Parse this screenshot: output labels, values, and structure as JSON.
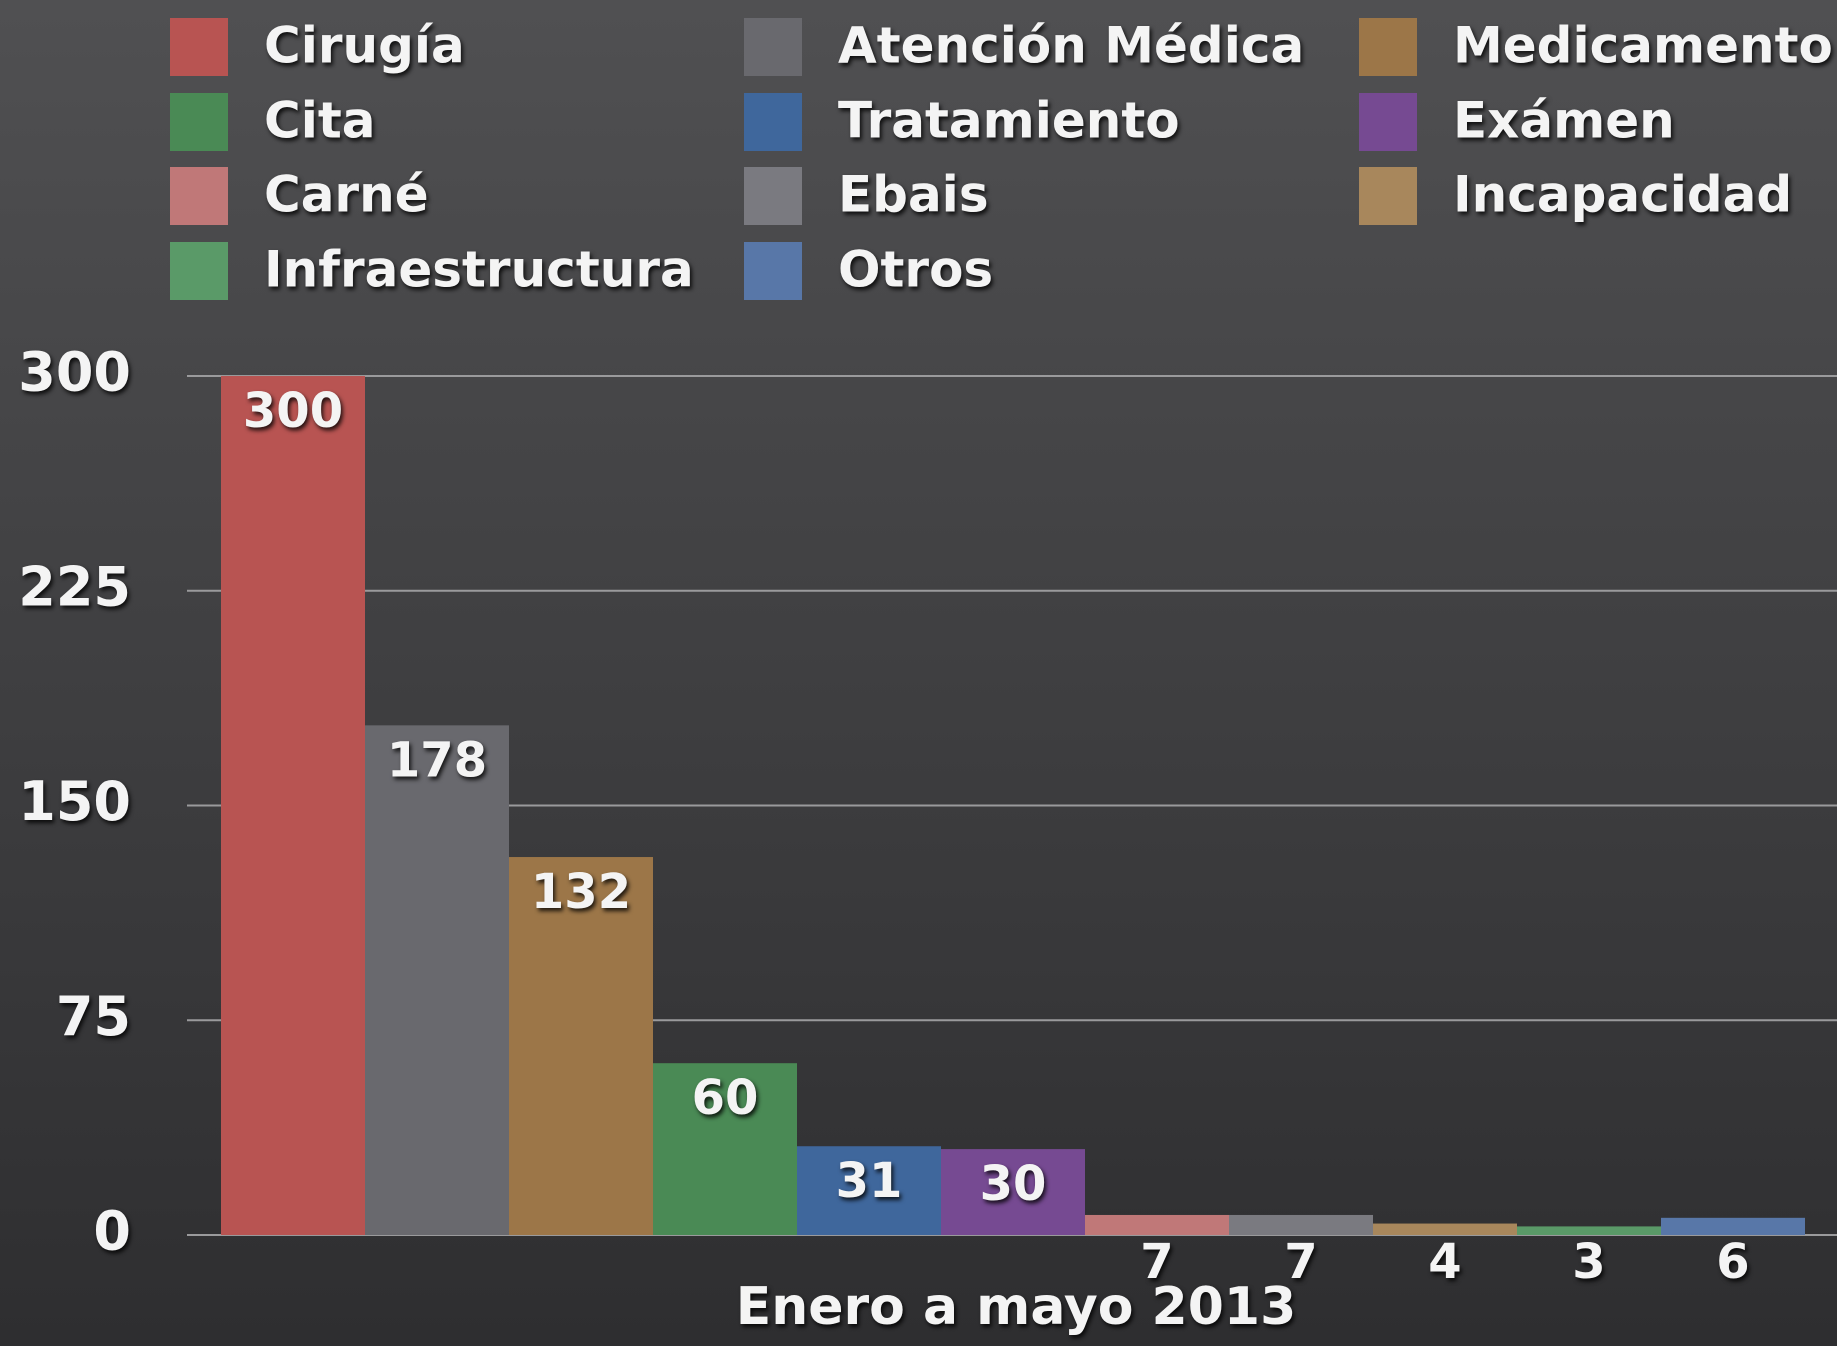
{
  "chart_data": {
    "type": "bar",
    "categories": [
      "Enero a mayo 2013"
    ],
    "series": [
      {
        "name": "Cirugía",
        "color": "#b85452",
        "values": [
          300
        ]
      },
      {
        "name": "Atención Médica",
        "color": "#69696e",
        "values": [
          178
        ]
      },
      {
        "name": "Medicamento",
        "color": "#9c7648",
        "values": [
          132
        ]
      },
      {
        "name": "Cita",
        "color": "#4a8a55",
        "values": [
          60
        ]
      },
      {
        "name": "Tratamiento",
        "color": "#3f679c",
        "values": [
          31
        ]
      },
      {
        "name": "Exámen",
        "color": "#764a92",
        "values": [
          30
        ]
      },
      {
        "name": "Carné",
        "color": "#c07878",
        "values": [
          7
        ]
      },
      {
        "name": "Ebais",
        "color": "#7a7a80",
        "values": [
          7
        ]
      },
      {
        "name": "Incapacidad",
        "color": "#a8875c",
        "values": [
          4
        ]
      },
      {
        "name": "Infraestructura",
        "color": "#5a9a68",
        "values": [
          3
        ]
      },
      {
        "name": "Otros",
        "color": "#5877a8",
        "values": [
          6
        ]
      }
    ],
    "ylim": [
      0,
      300
    ],
    "yticks": [
      0,
      75,
      150,
      225,
      300
    ],
    "grid": true
  }
}
